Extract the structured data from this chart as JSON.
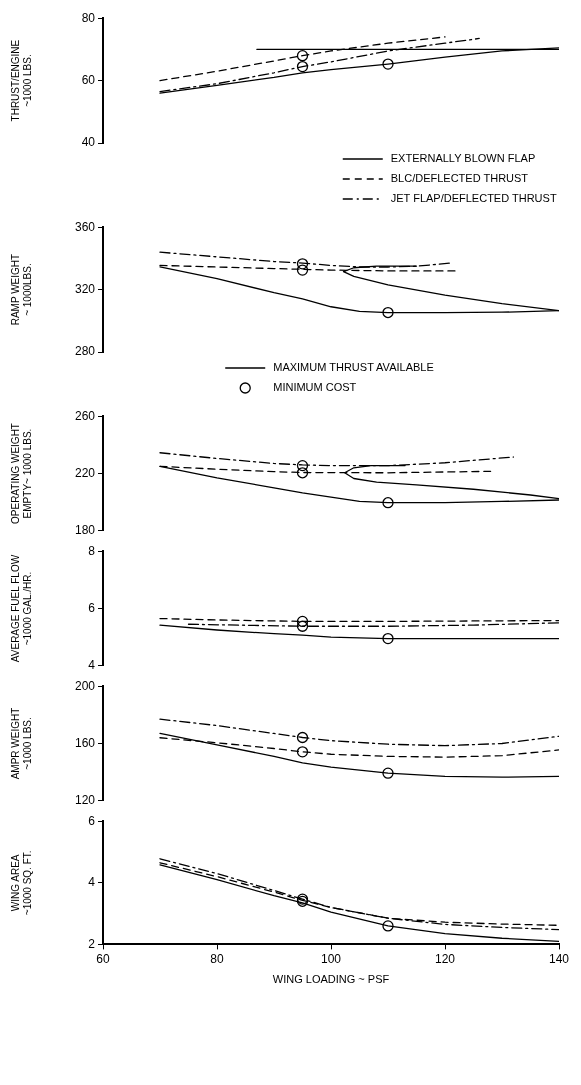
{
  "chart_data": [
    {
      "type": "line",
      "ylabel": "THRUST/ENGINE\n~1000 LBS.",
      "xlim": [
        60,
        140
      ],
      "xticks": [
        60,
        80,
        100,
        120,
        140
      ],
      "ylim": [
        40,
        80
      ],
      "yticks": [
        40,
        60,
        80
      ],
      "tick_labels": "y",
      "grid": false,
      "legend": "bottom right",
      "marker": "none",
      "series": [
        {
          "name": "EXTERNALLY BLOWN FLAP",
          "color": "#000000",
          "line_style": "solid",
          "x": [
            70,
            80,
            90,
            95,
            100,
            110,
            120,
            130,
            140
          ],
          "values": [
            56,
            58.5,
            61,
            62.5,
            63.5,
            65.3,
            67.5,
            69.5,
            70.5
          ]
        },
        {
          "name": "BLC/DEFLECTED THRUST",
          "color": "#000000",
          "line_style": "dashed",
          "x": [
            70,
            80,
            90,
            95,
            100,
            110,
            120
          ],
          "values": [
            60,
            63,
            66.3,
            68,
            69.5,
            72,
            74
          ]
        },
        {
          "name": "JET FLAP/DEFLECTED THRUST",
          "color": "#000000",
          "line_style": "dashdot",
          "x": [
            70,
            80,
            90,
            95,
            100,
            110,
            120,
            126
          ],
          "values": [
            56.5,
            59,
            62.5,
            64.5,
            66,
            69.5,
            72,
            73.5
          ]
        },
        {
          "color": "#000000",
          "line_style": "solid",
          "x": [
            87,
            140
          ],
          "values": [
            70,
            70
          ]
        },
        {
          "type": "scatter",
          "marker": "circle",
          "color": "#000000",
          "x": [
            95,
            95,
            110
          ],
          "values": [
            68,
            64.5,
            65.3
          ]
        }
      ]
    },
    {
      "type": "line",
      "ylabel": "RAMP WEIGHT\n~ 1000LBS.",
      "xlim": [
        60,
        140
      ],
      "xticks": [
        60,
        80,
        100,
        120,
        140
      ],
      "ylim": [
        280,
        360
      ],
      "yticks": [
        280,
        320,
        360
      ],
      "tick_labels": "y",
      "grid": false,
      "legend": "bottom",
      "marker": "none",
      "series": [
        {
          "color": "#000000",
          "line_style": "solid",
          "x": [
            70,
            80,
            90,
            95,
            100,
            105,
            110,
            120,
            130,
            140
          ],
          "values": [
            334.5,
            327,
            318,
            314,
            309,
            306,
            305.3,
            305.3,
            305.5,
            306.5
          ]
        },
        {
          "color": "#000000",
          "line_style": "dashed",
          "x": [
            70,
            80,
            90,
            95,
            100,
            110,
            122
          ],
          "values": [
            335.5,
            334.5,
            333.5,
            333,
            332.5,
            332,
            332
          ]
        },
        {
          "color": "#000000",
          "line_style": "dashdot",
          "x": [
            70,
            80,
            90,
            95,
            100,
            105,
            110,
            115,
            121
          ],
          "values": [
            344,
            341,
            338,
            337,
            335.5,
            334.5,
            334.5,
            335,
            337
          ]
        },
        {
          "name": "MAXIMUM THRUST AVAILABLE",
          "color": "#000000",
          "line_style": "solid",
          "x": [
            115,
            108,
            104,
            102.2,
            104,
            110,
            120,
            130,
            140
          ],
          "values": [
            335,
            335,
            334,
            331.5,
            328.5,
            323,
            316.5,
            311,
            306.5
          ]
        },
        {
          "name": "MINIMUM COST",
          "type": "scatter",
          "marker": "circle",
          "color": "#000000",
          "x": [
            95,
            95,
            110
          ],
          "values": [
            336.5,
            332.5,
            305.3
          ]
        }
      ]
    },
    {
      "type": "line",
      "ylabel": "OPERATING WEIGHT\nEMPTY~ 1000 LBS.",
      "xlim": [
        60,
        140
      ],
      "xticks": [
        60,
        80,
        100,
        120,
        140
      ],
      "ylim": [
        180,
        260
      ],
      "yticks": [
        180,
        220,
        260
      ],
      "tick_labels": "y",
      "grid": false,
      "marker": "none",
      "series": [
        {
          "color": "#000000",
          "line_style": "solid",
          "x": [
            70,
            80,
            90,
            95,
            100,
            105,
            110,
            120,
            130,
            140
          ],
          "values": [
            225,
            217,
            210,
            206.5,
            203.5,
            200.5,
            199.6,
            199.6,
            200.5,
            201.5
          ]
        },
        {
          "color": "#000000",
          "line_style": "dashed",
          "x": [
            70,
            80,
            90,
            95,
            110,
            128
          ],
          "values": [
            225,
            223,
            221.3,
            220.7,
            220.5,
            221.5
          ]
        },
        {
          "color": "#000000",
          "line_style": "dashdot",
          "x": [
            70,
            80,
            90,
            95,
            100,
            110,
            120,
            132
          ],
          "values": [
            234.5,
            230.5,
            227,
            226,
            225.5,
            225.5,
            227.5,
            231.5
          ]
        },
        {
          "color": "#000000",
          "line_style": "solid",
          "x": [
            113,
            107,
            104,
            102.4,
            104,
            108,
            115,
            125,
            135,
            140
          ],
          "values": [
            225.5,
            225.5,
            224,
            220.5,
            216.5,
            214,
            212,
            209,
            205,
            202.5
          ]
        },
        {
          "type": "scatter",
          "marker": "circle",
          "color": "#000000",
          "x": [
            95,
            95,
            110
          ],
          "values": [
            225.5,
            220.5,
            199.6
          ]
        }
      ]
    },
    {
      "type": "line",
      "ylabel": "AVERAGE FUEL FLOW\n~1000 GAL./HR.",
      "xlim": [
        60,
        140
      ],
      "xticks": [
        60,
        80,
        100,
        120,
        140
      ],
      "ylim": [
        4,
        8
      ],
      "yticks": [
        4,
        6,
        8
      ],
      "tick_labels": "y",
      "grid": false,
      "marker": "none",
      "series": [
        {
          "color": "#000000",
          "line_style": "solid",
          "x": [
            70,
            80,
            90,
            95,
            100,
            110,
            140
          ],
          "values": [
            5.42,
            5.25,
            5.12,
            5.07,
            5.0,
            4.95,
            4.95
          ]
        },
        {
          "color": "#000000",
          "line_style": "dashed",
          "x": [
            70,
            80,
            95,
            110,
            140
          ],
          "values": [
            5.65,
            5.6,
            5.55,
            5.55,
            5.58
          ]
        },
        {
          "color": "#000000",
          "line_style": "dashdot",
          "x": [
            75,
            95,
            110,
            125,
            140
          ],
          "values": [
            5.45,
            5.38,
            5.38,
            5.42,
            5.5
          ]
        },
        {
          "type": "scatter",
          "marker": "circle",
          "color": "#000000",
          "x": [
            95,
            95,
            110
          ],
          "values": [
            5.55,
            5.38,
            4.95
          ]
        }
      ]
    },
    {
      "type": "line",
      "ylabel": "AMPR WEIGHT\n~1000 LBS.",
      "xlim": [
        60,
        140
      ],
      "xticks": [
        60,
        80,
        100,
        120,
        140
      ],
      "ylim": [
        120,
        200
      ],
      "yticks": [
        120,
        160,
        200
      ],
      "tick_labels": "y",
      "grid": false,
      "marker": "none",
      "series": [
        {
          "color": "#000000",
          "line_style": "solid",
          "x": [
            70,
            80,
            90,
            95,
            100,
            110,
            120,
            130,
            140
          ],
          "values": [
            167,
            159,
            151,
            146.5,
            143.5,
            139.3,
            137,
            136.5,
            137
          ]
        },
        {
          "color": "#000000",
          "line_style": "dashed",
          "x": [
            70,
            80,
            90,
            95,
            100,
            110,
            120,
            130,
            140
          ],
          "values": [
            164,
            160.5,
            156.5,
            154.2,
            152.5,
            151,
            150.5,
            151.5,
            155.5
          ]
        },
        {
          "color": "#000000",
          "line_style": "dashdot",
          "x": [
            70,
            80,
            90,
            95,
            100,
            110,
            120,
            130,
            140
          ],
          "values": [
            177,
            172.5,
            167,
            164.2,
            162,
            159.5,
            158.5,
            160,
            165
          ]
        },
        {
          "type": "scatter",
          "marker": "circle",
          "color": "#000000",
          "x": [
            95,
            95,
            110
          ],
          "values": [
            164.2,
            154.2,
            139.3
          ]
        }
      ]
    },
    {
      "type": "line",
      "ylabel": "WING AREA\n~1000 SQ. FT.",
      "xlabel": "WING LOADING ~ PSF",
      "xlim": [
        60,
        140
      ],
      "xticks": [
        60,
        80,
        100,
        120,
        140
      ],
      "ylim": [
        2,
        6
      ],
      "yticks": [
        2,
        4,
        6
      ],
      "grid": false,
      "marker": "none",
      "series": [
        {
          "color": "#000000",
          "line_style": "solid",
          "x": [
            70,
            80,
            90,
            95,
            100,
            110,
            120,
            130,
            140
          ],
          "values": [
            4.58,
            4.1,
            3.58,
            3.35,
            3.05,
            2.6,
            2.35,
            2.2,
            2.1
          ]
        },
        {
          "color": "#000000",
          "line_style": "dashed",
          "x": [
            70,
            80,
            90,
            95,
            100,
            110,
            120,
            130,
            140
          ],
          "values": [
            4.65,
            4.2,
            3.7,
            3.43,
            3.2,
            2.85,
            2.72,
            2.66,
            2.62
          ]
        },
        {
          "color": "#000000",
          "line_style": "dashdot",
          "x": [
            70,
            80,
            90,
            95,
            100,
            110,
            120,
            130,
            140
          ],
          "values": [
            4.78,
            4.3,
            3.75,
            3.47,
            3.2,
            2.85,
            2.65,
            2.55,
            2.48
          ]
        },
        {
          "type": "scatter",
          "marker": "circle",
          "color": "#000000",
          "x": [
            95,
            95,
            110
          ],
          "values": [
            3.47,
            3.4,
            2.6
          ]
        }
      ]
    }
  ]
}
